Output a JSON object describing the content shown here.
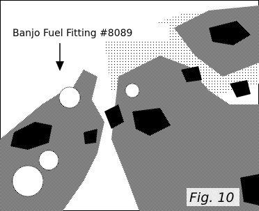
{
  "figure": {
    "label": "Banjo Fuel Fitting #8089",
    "caption": "Fig. 10"
  }
}
